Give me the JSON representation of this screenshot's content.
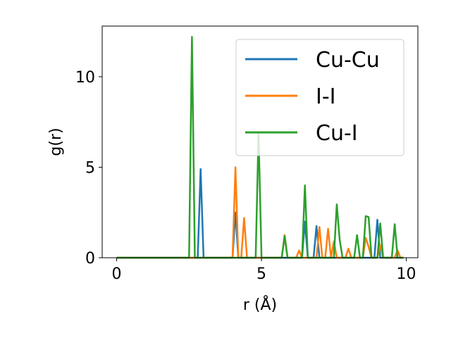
{
  "chart_data": {
    "type": "line",
    "title": "",
    "xlabel": "r (Å)",
    "ylabel": "g(r)",
    "xlim": [
      -0.5,
      10.4
    ],
    "ylim": [
      0,
      12.8
    ],
    "xticks": [
      0,
      5,
      10
    ],
    "yticks": [
      0,
      5,
      10
    ],
    "x_tick_labels": [
      "0",
      "5",
      "10"
    ],
    "y_tick_labels": [
      "0",
      "5",
      "10"
    ],
    "grid": false,
    "legend_position": "top-right",
    "series": [
      {
        "name": "Cu-Cu",
        "color": "#1f77b4",
        "x": [
          0,
          2.8,
          2.9,
          3.0,
          4.0,
          4.1,
          4.2,
          6.4,
          6.5,
          6.6,
          6.8,
          6.9,
          7.0,
          8.9,
          9.0,
          9.1,
          9.9
        ],
        "y": [
          0,
          0,
          4.9,
          0,
          0,
          2.5,
          0,
          0,
          2.0,
          0,
          0,
          1.75,
          0,
          0,
          2.1,
          0,
          0
        ]
      },
      {
        "name": "I-I",
        "color": "#ff7f0e",
        "x": [
          0,
          4.0,
          4.1,
          4.2,
          4.3,
          4.4,
          4.5,
          5.7,
          5.8,
          5.9,
          6.2,
          6.3,
          6.4,
          6.9,
          7.0,
          7.1,
          7.2,
          7.3,
          7.4,
          7.5,
          7.6,
          7.9,
          8.0,
          8.1,
          8.5,
          8.6,
          8.7,
          8.8,
          9.0,
          9.1,
          9.2,
          9.6,
          9.7,
          9.8,
          9.9
        ],
        "y": [
          0,
          0,
          5.0,
          0,
          0,
          2.2,
          0,
          0,
          1.25,
          0,
          0,
          0.4,
          0,
          0,
          1.7,
          0,
          0,
          1.6,
          0,
          0.9,
          0,
          0,
          0.5,
          0,
          0,
          1.1,
          0.6,
          0,
          0,
          0.7,
          0,
          0,
          0.4,
          0,
          0
        ]
      },
      {
        "name": "Cu-I",
        "color": "#2ca02c",
        "x": [
          0,
          2.5,
          2.6,
          2.7,
          4.8,
          4.9,
          5.0,
          5.7,
          5.8,
          5.9,
          6.4,
          6.5,
          6.6,
          7.5,
          7.6,
          7.7,
          7.8,
          8.2,
          8.3,
          8.4,
          8.5,
          8.6,
          8.7,
          8.8,
          9.0,
          9.1,
          9.2,
          9.5,
          9.6,
          9.7,
          9.9
        ],
        "y": [
          0,
          0,
          12.2,
          0,
          0,
          6.9,
          0,
          0,
          1.2,
          0,
          0,
          4.0,
          0,
          0,
          2.95,
          1.0,
          0,
          0,
          1.25,
          0,
          0,
          2.3,
          2.25,
          0,
          0,
          1.9,
          0,
          0,
          1.85,
          0,
          0
        ]
      }
    ]
  }
}
